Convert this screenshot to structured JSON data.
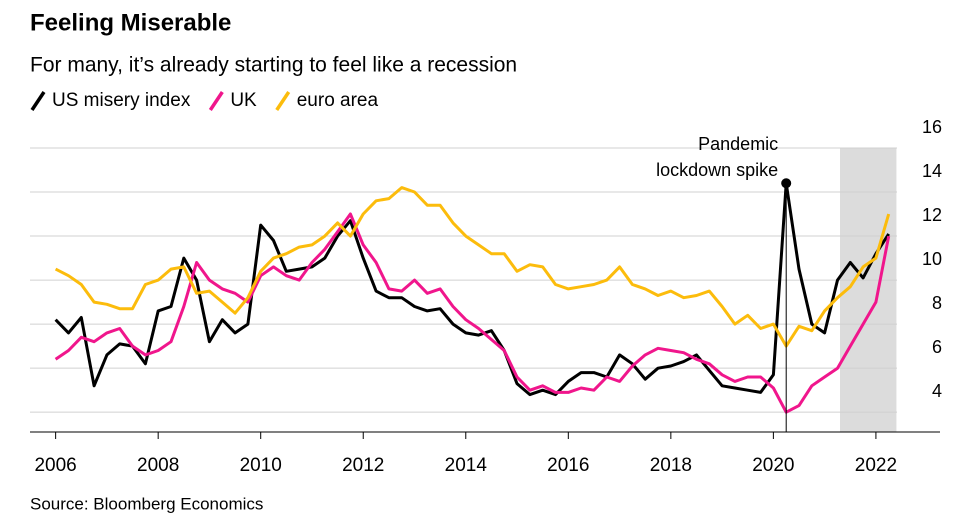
{
  "chart_data": {
    "type": "line",
    "title": "Feeling Miserable",
    "subtitle": "For many, it’s already starting to feel like a recession",
    "source": "Source: Bloomberg Economics",
    "x": [
      2006,
      2006.25,
      2006.5,
      2006.75,
      2007,
      2007.25,
      2007.5,
      2007.75,
      2008,
      2008.25,
      2008.5,
      2008.75,
      2009,
      2009.25,
      2009.5,
      2009.75,
      2010,
      2010.25,
      2010.5,
      2010.75,
      2011,
      2011.25,
      2011.5,
      2011.75,
      2012,
      2012.25,
      2012.5,
      2012.75,
      2013,
      2013.25,
      2013.5,
      2013.75,
      2014,
      2014.25,
      2014.5,
      2014.75,
      2015,
      2015.25,
      2015.5,
      2015.75,
      2016,
      2016.25,
      2016.5,
      2016.75,
      2017,
      2017.25,
      2017.5,
      2017.75,
      2018,
      2018.25,
      2018.5,
      2018.75,
      2019,
      2019.25,
      2019.5,
      2019.75,
      2020,
      2020.25,
      2020.5,
      2020.75,
      2021,
      2021.25,
      2021.5,
      2021.75,
      2022,
      2022.25
    ],
    "series": [
      {
        "name": "US misery index",
        "color": "#000000",
        "values": [
          8.2,
          7.6,
          8.3,
          5.2,
          6.6,
          7.1,
          7.0,
          6.2,
          8.6,
          8.8,
          11.0,
          10.0,
          7.2,
          8.2,
          7.6,
          8.0,
          12.5,
          11.8,
          10.4,
          10.5,
          10.6,
          11.0,
          12.0,
          12.7,
          11.0,
          9.5,
          9.2,
          9.2,
          8.8,
          8.6,
          8.7,
          8.0,
          7.6,
          7.5,
          7.7,
          6.8,
          5.3,
          4.8,
          5.0,
          4.8,
          5.4,
          5.8,
          5.8,
          5.6,
          6.6,
          6.2,
          5.5,
          6.0,
          6.1,
          6.3,
          6.6,
          5.9,
          5.2,
          5.1,
          5.0,
          4.9,
          5.7,
          14.4,
          10.5,
          8.0,
          7.6,
          10.0,
          10.8,
          10.1,
          11.2,
          12.1
        ]
      },
      {
        "name": "UK",
        "color": "#f0168c",
        "values": [
          6.4,
          6.8,
          7.4,
          7.2,
          7.6,
          7.8,
          7.0,
          6.6,
          6.8,
          7.2,
          8.8,
          10.8,
          10.0,
          9.6,
          9.4,
          9.0,
          10.2,
          10.6,
          10.2,
          10.0,
          10.8,
          11.4,
          12.2,
          13.0,
          11.6,
          10.8,
          9.6,
          9.5,
          10.0,
          9.4,
          9.6,
          8.8,
          8.2,
          7.8,
          7.3,
          6.8,
          5.6,
          5.0,
          5.2,
          4.9,
          4.9,
          5.1,
          5.0,
          5.6,
          5.4,
          6.1,
          6.6,
          6.9,
          6.8,
          6.7,
          6.4,
          6.2,
          5.7,
          5.4,
          5.6,
          5.6,
          5.1,
          4.0,
          4.3,
          5.2,
          5.6,
          6.0,
          7.0,
          8.0,
          9.0,
          12.0
        ]
      },
      {
        "name": "euro area",
        "color": "#fcbc0c",
        "values": [
          10.5,
          10.2,
          9.8,
          9.0,
          8.9,
          8.7,
          8.7,
          9.8,
          10.0,
          10.5,
          10.6,
          9.4,
          9.5,
          9.0,
          8.5,
          9.2,
          10.4,
          11.0,
          11.2,
          11.5,
          11.6,
          12.0,
          12.6,
          12.0,
          13.0,
          13.6,
          13.7,
          14.2,
          14.0,
          13.4,
          13.4,
          12.6,
          12.0,
          11.6,
          11.2,
          11.2,
          10.4,
          10.7,
          10.6,
          9.8,
          9.6,
          9.7,
          9.8,
          10.0,
          10.6,
          9.8,
          9.6,
          9.3,
          9.5,
          9.2,
          9.3,
          9.5,
          8.8,
          8.0,
          8.4,
          7.8,
          8.0,
          7.0,
          7.9,
          7.7,
          8.6,
          9.2,
          9.7,
          10.6,
          11.0,
          13.0
        ]
      }
    ],
    "xlim": [
      2005.5,
      2023.25
    ],
    "xticks": [
      2006,
      2008,
      2010,
      2012,
      2014,
      2016,
      2018,
      2020,
      2022
    ],
    "ylim": [
      3.1,
      16
    ],
    "yticks": [
      4,
      6,
      8,
      10,
      12,
      14,
      16
    ],
    "grid": true,
    "highlight": [
      2021.3,
      2022.4
    ],
    "highlight_color": "#dcdcdc",
    "annotation": {
      "text": [
        "Pandemic",
        "lockdown spike"
      ],
      "x": 2020.25,
      "y": 14.4
    }
  }
}
